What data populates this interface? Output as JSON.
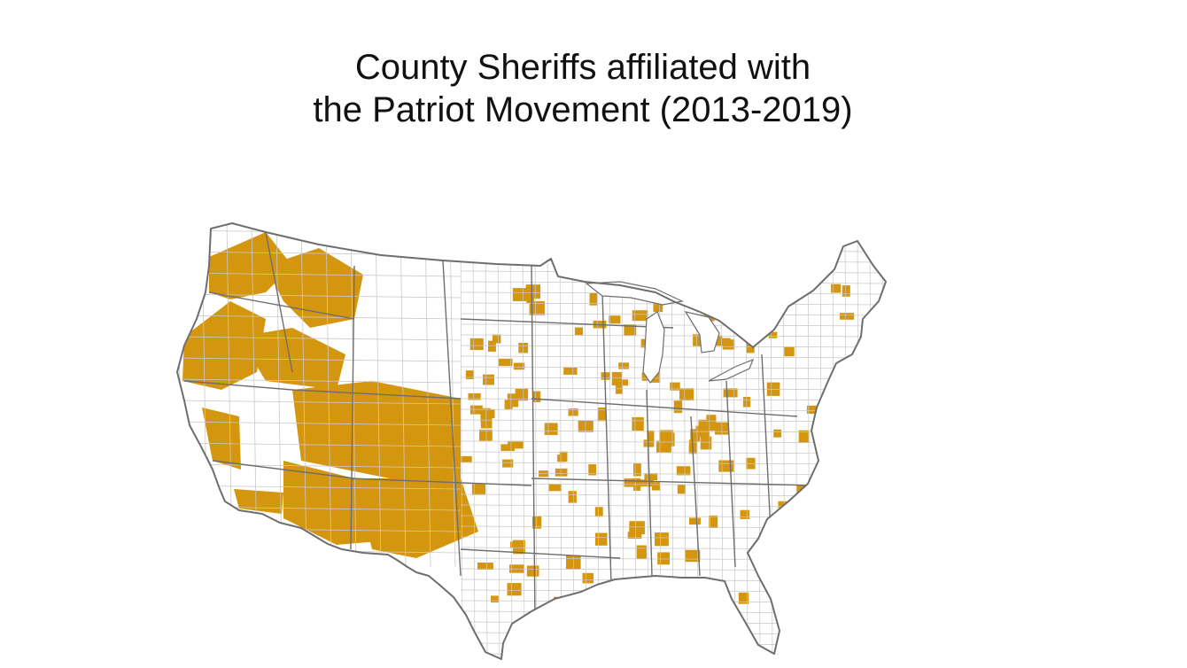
{
  "title": {
    "line1": "County Sheriffs affiliated with",
    "line2": "the Patriot Movement (2013-2019)"
  },
  "map": {
    "subject": "Contiguous United States, county boundaries",
    "highlight_color": "#D4950F",
    "county_line_color": "#c9c9c9",
    "state_line_color": "#6e6e6e",
    "background_color": "#ffffff"
  }
}
